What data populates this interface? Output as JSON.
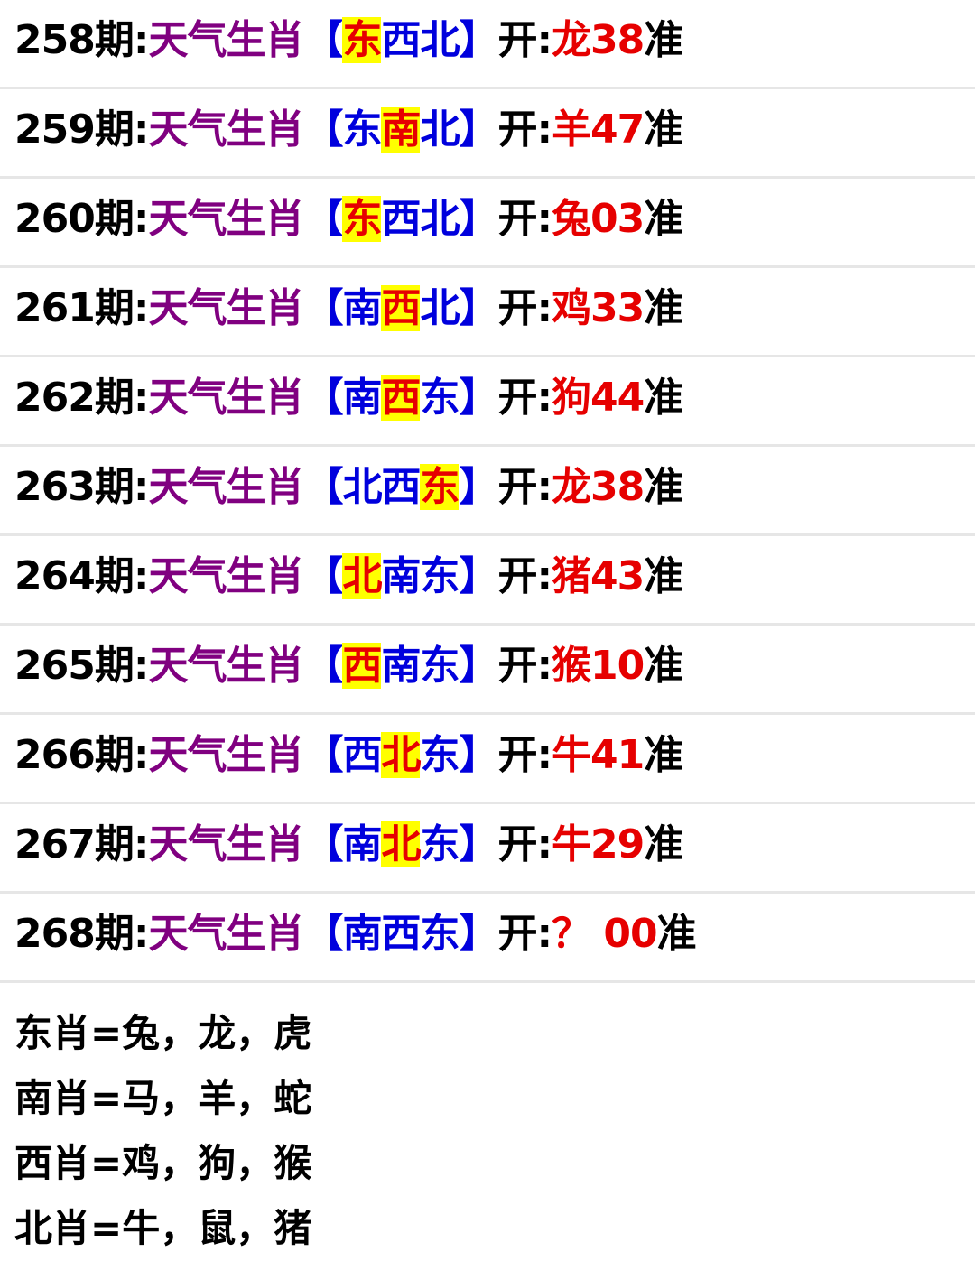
{
  "colors": {
    "label": "#800080",
    "bracket": "#0000dd",
    "result": "#e60000",
    "highlight_bg": "#ffff00"
  },
  "rows": [
    {
      "issue": "258期:",
      "label": "天气生肖",
      "open": "【",
      "dirs": [
        "东",
        "西",
        "北"
      ],
      "hit": 0,
      "close": "】",
      "kai": "开:",
      "result": "龙38",
      "suffix": "准"
    },
    {
      "issue": "259期:",
      "label": "天气生肖",
      "open": "【",
      "dirs": [
        "东",
        "南",
        "北"
      ],
      "hit": 1,
      "close": "】",
      "kai": "开:",
      "result": "羊47",
      "suffix": "准"
    },
    {
      "issue": "260期:",
      "label": "天气生肖",
      "open": "【",
      "dirs": [
        "东",
        "西",
        "北"
      ],
      "hit": 0,
      "close": "】",
      "kai": "开:",
      "result": "兔03",
      "suffix": "准"
    },
    {
      "issue": "261期:",
      "label": "天气生肖",
      "open": "【",
      "dirs": [
        "南",
        "西",
        "北"
      ],
      "hit": 1,
      "close": "】",
      "kai": "开:",
      "result": "鸡33",
      "suffix": "准"
    },
    {
      "issue": "262期:",
      "label": "天气生肖",
      "open": "【",
      "dirs": [
        "南",
        "西",
        "东"
      ],
      "hit": 1,
      "close": "】",
      "kai": "开:",
      "result": "狗44",
      "suffix": "准"
    },
    {
      "issue": "263期:",
      "label": "天气生肖",
      "open": "【",
      "dirs": [
        "北",
        "西",
        "东"
      ],
      "hit": 2,
      "close": "】",
      "kai": "开:",
      "result": "龙38",
      "suffix": "准"
    },
    {
      "issue": "264期:",
      "label": "天气生肖",
      "open": "【",
      "dirs": [
        "北",
        "南",
        "东"
      ],
      "hit": 0,
      "close": "】",
      "kai": "开:",
      "result": "猪43",
      "suffix": "准"
    },
    {
      "issue": "265期:",
      "label": "天气生肖",
      "open": "【",
      "dirs": [
        "西",
        "南",
        "东"
      ],
      "hit": 0,
      "close": "】",
      "kai": "开:",
      "result": "猴10",
      "suffix": "准"
    },
    {
      "issue": "266期:",
      "label": "天气生肖",
      "open": "【",
      "dirs": [
        "西",
        "北",
        "东"
      ],
      "hit": 1,
      "close": "】",
      "kai": "开:",
      "result": "牛41",
      "suffix": "准"
    },
    {
      "issue": "267期:",
      "label": "天气生肖",
      "open": "【",
      "dirs": [
        "南",
        "北",
        "东"
      ],
      "hit": 1,
      "close": "】",
      "kai": "开:",
      "result": "牛29",
      "suffix": "准"
    },
    {
      "issue": "268期:",
      "label": "天气生肖",
      "open": "【",
      "dirs": [
        "南",
        "西",
        "东"
      ],
      "hit": -1,
      "close": "】",
      "kai": "开:",
      "result": "？ 00",
      "suffix": "准"
    }
  ],
  "legend": [
    "东肖=兔，龙，虎",
    "南肖=马，羊，蛇",
    "西肖=鸡，狗，猴",
    "北肖=牛，鼠，猪"
  ]
}
